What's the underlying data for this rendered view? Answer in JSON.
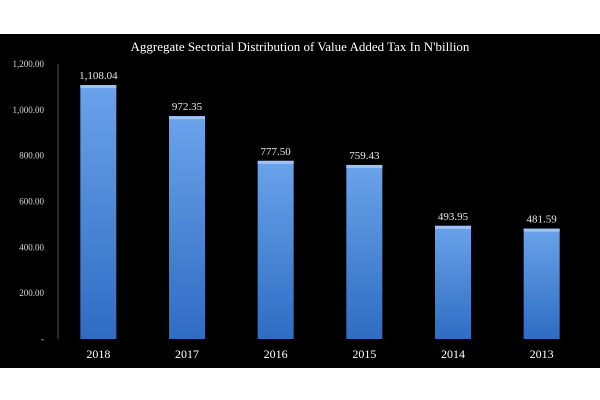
{
  "chart_data": {
    "type": "bar",
    "title": "Aggregate Sectorial Distribution of Value Added Tax In N'billion",
    "xlabel": "",
    "ylabel": "",
    "categories": [
      "2018",
      "2017",
      "2016",
      "2015",
      "2014",
      "2013"
    ],
    "values": [
      1108.04,
      972.35,
      777.5,
      759.43,
      493.95,
      481.59
    ],
    "value_labels": [
      "1,108.04",
      "972.35",
      "777.50",
      "759.43",
      "493.95",
      "481.59"
    ],
    "ylim": [
      0,
      1200
    ],
    "yticks": [
      0,
      200,
      400,
      600,
      800,
      1000,
      1200
    ],
    "ytick_labels": [
      "-",
      "200.00",
      "400.00",
      "600.00",
      "800.00",
      "1,000.00",
      "1,200.00"
    ],
    "grid": false,
    "legend": "none",
    "colors": {
      "background": "#000000",
      "bar_top": "#6aa3ea",
      "bar_bottom": "#2f6cc2",
      "text": "#ffffff"
    }
  }
}
